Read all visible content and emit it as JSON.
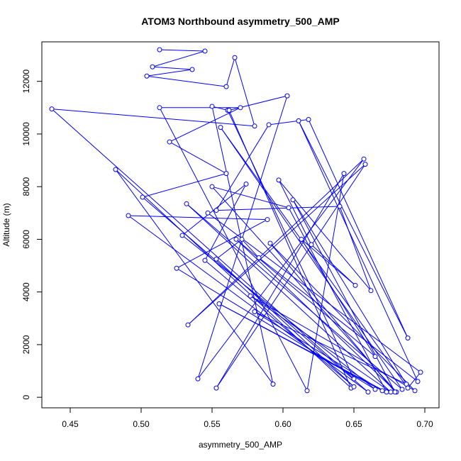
{
  "chart_data": {
    "type": "line",
    "title": "ATOM3 Northbound asymmetry_500_AMP",
    "xlabel": "asymmetry_500_AMP",
    "ylabel": "Altitude (m)",
    "xlim": [
      0.43,
      0.71
    ],
    "ylim": [
      -400,
      13500
    ],
    "x_ticks": [
      0.45,
      0.5,
      0.55,
      0.6,
      0.65,
      0.7
    ],
    "x_tick_labels": [
      "0.45",
      "0.50",
      "0.55",
      "0.60",
      "0.65",
      "0.70"
    ],
    "y_ticks": [
      0,
      2000,
      4000,
      6000,
      8000,
      10000,
      12000
    ],
    "y_tick_labels": [
      "0",
      "2000",
      "4000",
      "6000",
      "8000",
      "10000",
      "12000"
    ],
    "grid": false,
    "series_color": "#0000ff",
    "series": [
      {
        "values": [
          [
            0.513,
            13200
          ],
          [
            0.545,
            13150
          ],
          [
            0.508,
            12550
          ],
          [
            0.536,
            12450
          ],
          [
            0.504,
            12200
          ],
          [
            0.56,
            11800
          ],
          [
            0.566,
            12900
          ],
          [
            0.58,
            10300
          ],
          [
            0.437,
            10950
          ],
          [
            0.65,
            700
          ],
          [
            0.561,
            10900
          ],
          [
            0.55,
            11050
          ],
          [
            0.593,
            500
          ],
          [
            0.482,
            8650
          ],
          [
            0.648,
            350
          ],
          [
            0.562,
            10900
          ],
          [
            0.603,
            11450
          ],
          [
            0.54,
            700
          ],
          [
            0.657,
            9050
          ],
          [
            0.533,
            2750
          ],
          [
            0.658,
            8850
          ],
          [
            0.553,
            350
          ],
          [
            0.643,
            8500
          ],
          [
            0.617,
            250
          ],
          [
            0.513,
            11000
          ],
          [
            0.57,
            11000
          ],
          [
            0.52,
            9700
          ],
          [
            0.56,
            8500
          ],
          [
            0.501,
            7600
          ],
          [
            0.66,
            200
          ],
          [
            0.491,
            6900
          ],
          [
            0.589,
            6750
          ],
          [
            0.525,
            4900
          ],
          [
            0.665,
            300
          ],
          [
            0.529,
            6150
          ],
          [
            0.574,
            8100
          ],
          [
            0.545,
            5200
          ],
          [
            0.65,
            400
          ],
          [
            0.553,
            5250
          ],
          [
            0.571,
            6000
          ],
          [
            0.583,
            5300
          ],
          [
            0.695,
            600
          ],
          [
            0.611,
            10500
          ],
          [
            0.688,
            2250
          ],
          [
            0.618,
            10550
          ],
          [
            0.59,
            10350
          ],
          [
            0.553,
            7100
          ],
          [
            0.64,
            7250
          ],
          [
            0.662,
            4050
          ],
          [
            0.597,
            8250
          ],
          [
            0.62,
            5800
          ],
          [
            0.651,
            4250
          ],
          [
            0.613,
            6000
          ],
          [
            0.665,
            1550
          ],
          [
            0.567,
            6000
          ],
          [
            0.68,
            200
          ],
          [
            0.55,
            8000
          ],
          [
            0.604,
            7200
          ],
          [
            0.673,
            200
          ],
          [
            0.555,
            3550
          ],
          [
            0.67,
            250
          ],
          [
            0.58,
            3250
          ],
          [
            0.687,
            500
          ],
          [
            0.607,
            7500
          ],
          [
            0.679,
            200
          ],
          [
            0.591,
            5850
          ],
          [
            0.693,
            250
          ],
          [
            0.577,
            3850
          ],
          [
            0.676,
            200
          ],
          [
            0.532,
            7350
          ],
          [
            0.684,
            300
          ],
          [
            0.556,
            10250
          ],
          [
            0.688,
            350
          ],
          [
            0.697,
            950
          ],
          [
            0.547,
            7000
          ]
        ]
      }
    ]
  }
}
